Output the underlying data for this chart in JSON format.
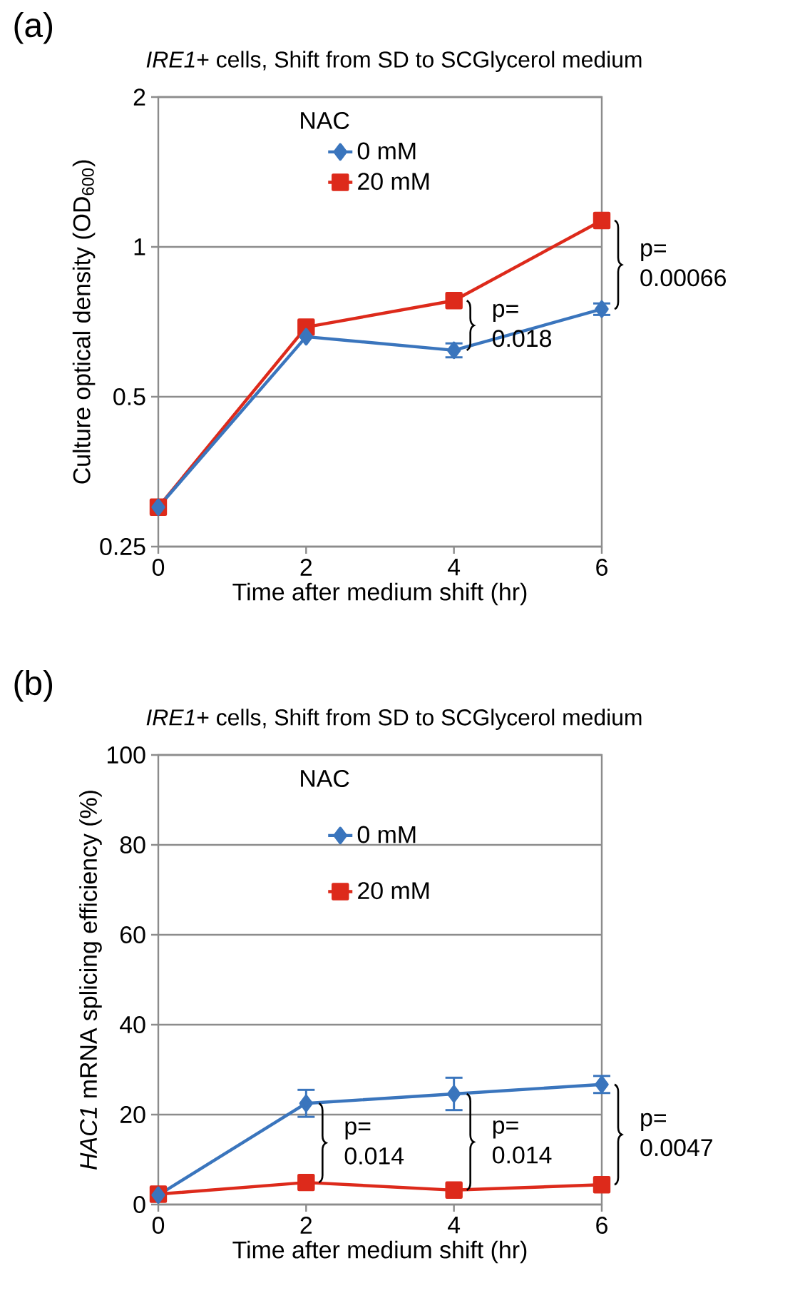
{
  "chart_data": [
    {
      "type": "line",
      "title": "*IRE1*+ cells, Shift from SD to SCGlycerol medium",
      "xlabel": "Time after medium shift (hr)",
      "ylabel": "Culture optical density (OD$_{600}$)",
      "legend_title": "NAC",
      "legend": "top",
      "log": "y",
      "grid": "y",
      "x": [
        0,
        2,
        4,
        6
      ],
      "xlim": [
        0,
        6
      ],
      "xticks": [
        0,
        2,
        4,
        6
      ],
      "ylim": [
        0.25,
        2
      ],
      "yticks": [
        0.25,
        0.5,
        1,
        2
      ],
      "series": [
        {
          "name": "0 mM",
          "color": "#3a75bd",
          "marker": "diamond",
          "values": [
            0.3,
            0.66,
            0.62,
            0.75
          ],
          "errors": [
            null,
            null,
            0.02,
            0.02
          ]
        },
        {
          "name": "20 mM",
          "color": "#dd2a1b",
          "marker": "square",
          "values": [
            0.3,
            0.69,
            0.78,
            1.13
          ]
        }
      ],
      "annotations": [
        "(a)",
        "p= 0.018",
        "p= 0.00066"
      ]
    },
    {
      "type": "line",
      "title": "*IRE1*+ cells, Shift from SD to SCGlycerol medium",
      "xlabel": "Time after medium shift (hr)",
      "ylabel": "*HAC1* mRNA splicing efficiency (%)",
      "legend_title": "NAC",
      "legend": "top",
      "grid": "y",
      "x": [
        0,
        2,
        4,
        6
      ],
      "xlim": [
        0,
        6
      ],
      "xticks": [
        0,
        2,
        4,
        6
      ],
      "ylim": [
        0,
        100
      ],
      "yticks": [
        0,
        20,
        40,
        60,
        80,
        100
      ],
      "series": [
        {
          "name": "0 mM",
          "color": "#3a75bd",
          "marker": "diamond",
          "values": [
            2.1,
            22.5,
            24.6,
            26.7
          ],
          "errors": [
            null,
            3.0,
            3.6,
            1.9
          ]
        },
        {
          "name": "20 mM",
          "color": "#dd2a1b",
          "marker": "square",
          "values": [
            2.3,
            4.9,
            3.2,
            4.4
          ]
        }
      ],
      "annotations": [
        "(b)",
        "p= 0.014",
        "p= 0.014",
        "p= 0.0047"
      ]
    }
  ]
}
